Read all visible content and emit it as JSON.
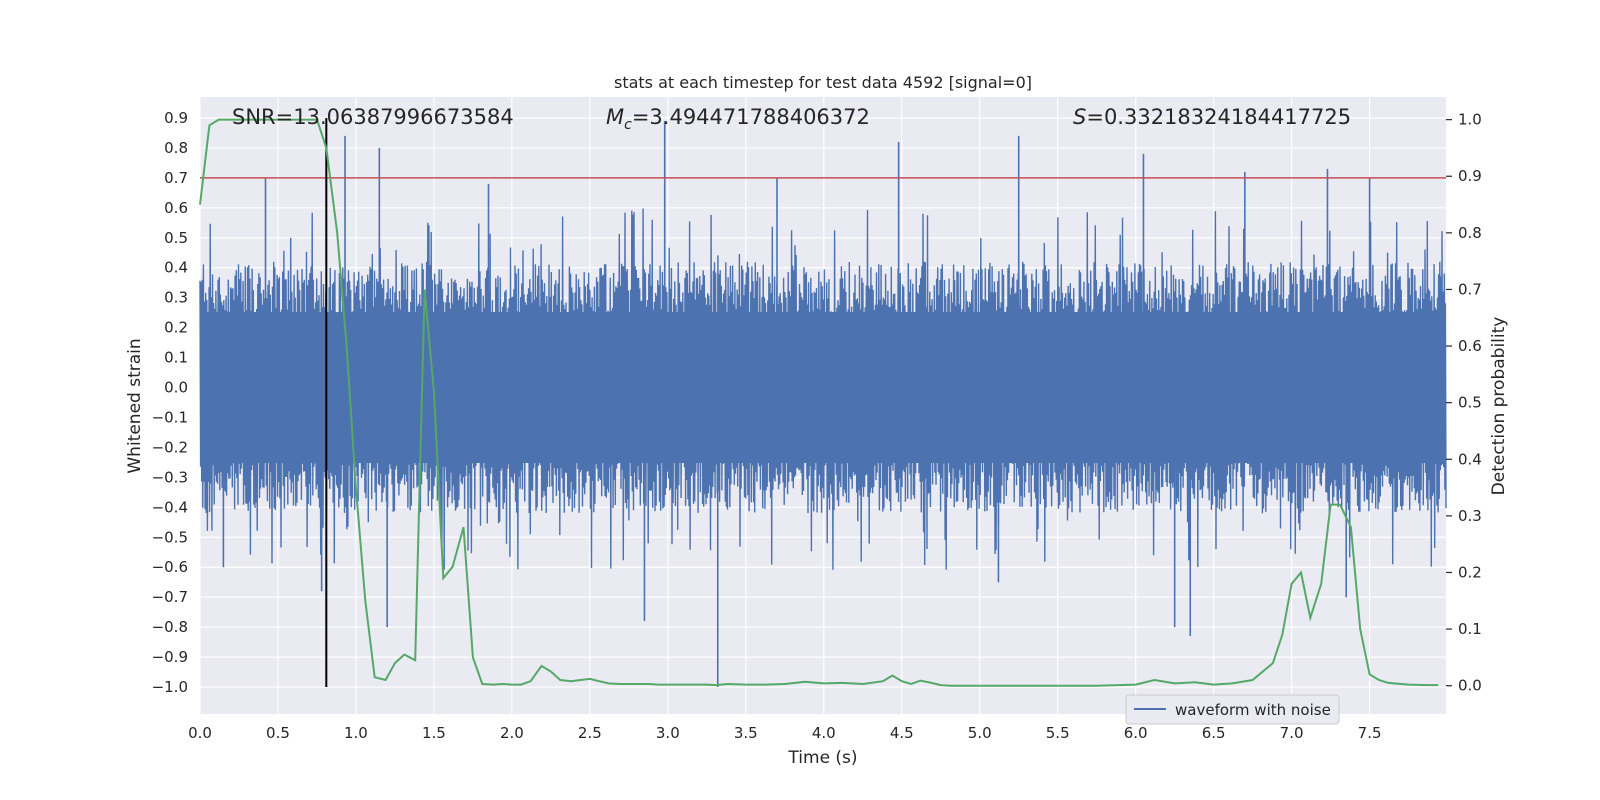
{
  "chart_data": {
    "type": "line",
    "title": "stats at each timestep for test data 4592 [signal=0]",
    "xlabel": "Time (s)",
    "ylabel_left": "Whitened strain",
    "ylabel_right": "Detection probability",
    "xlim": [
      0.0,
      7.99
    ],
    "ylim_left": [
      -1.09,
      0.97
    ],
    "ylim_right": [
      -0.05,
      1.04
    ],
    "x_ticks": [
      "0.0",
      "0.5",
      "1.0",
      "1.5",
      "2.0",
      "2.5",
      "3.0",
      "3.5",
      "4.0",
      "4.5",
      "5.0",
      "5.5",
      "6.0",
      "6.5",
      "7.0",
      "7.5"
    ],
    "y_ticks_left": [
      "0.9",
      "0.8",
      "0.7",
      "0.6",
      "0.5",
      "0.4",
      "0.3",
      "0.2",
      "0.1",
      "0.0",
      "−0.1",
      "−0.2",
      "−0.3",
      "−0.4",
      "−0.5",
      "−0.6",
      "−0.7",
      "−0.8",
      "−0.9",
      "−1.0"
    ],
    "y_ticks_right": [
      "1.0",
      "0.9",
      "0.8",
      "0.7",
      "0.6",
      "0.5",
      "0.4",
      "0.3",
      "0.2",
      "0.1",
      "0.0"
    ],
    "grid": true,
    "legend_position": "lower-right",
    "annotations": {
      "snr": "SNR=13.06387996673584",
      "mc_symbol": "M",
      "mc_sub": "c",
      "mc_value": "=3.494471788406372",
      "s_symbol": "S",
      "s_value": "=0.33218324184417725"
    },
    "threshold_line": {
      "y": 0.7,
      "color": "#c44e52"
    },
    "vertical_marker": {
      "x": 0.81,
      "y_from": -1.0,
      "y_to": 0.9,
      "color": "#000000"
    },
    "series": [
      {
        "name": "waveform with noise",
        "axis": "left",
        "color": "#4c72b0",
        "envelope": {
          "typical_abs": 0.42,
          "peak_abs": 0.9
        },
        "spikes_upper": [
          [
            0.93,
            0.84
          ],
          [
            1.15,
            0.8
          ],
          [
            2.98,
            0.89
          ],
          [
            4.48,
            0.82
          ],
          [
            5.25,
            0.84
          ],
          [
            6.05,
            0.78
          ],
          [
            7.23,
            0.73
          ],
          [
            0.42,
            0.7
          ],
          [
            1.85,
            0.68
          ],
          [
            3.7,
            0.7
          ],
          [
            6.7,
            0.72
          ],
          [
            7.5,
            0.7
          ]
        ],
        "spikes_lower": [
          [
            0.78,
            -0.68
          ],
          [
            1.2,
            -0.8
          ],
          [
            3.32,
            -1.0
          ],
          [
            6.25,
            -0.8
          ],
          [
            6.35,
            -0.83
          ],
          [
            2.85,
            -0.78
          ],
          [
            0.15,
            -0.6
          ],
          [
            5.12,
            -0.65
          ],
          [
            7.35,
            -0.7
          ]
        ]
      },
      {
        "name": "",
        "axis": "right",
        "color": "#55a868",
        "x": [
          0.0,
          0.06,
          0.12,
          0.19,
          0.25,
          0.31,
          0.38,
          0.44,
          0.5,
          0.56,
          0.62,
          0.69,
          0.75,
          0.81,
          0.88,
          0.94,
          1.0,
          1.06,
          1.12,
          1.19,
          1.25,
          1.31,
          1.38,
          1.44,
          1.5,
          1.56,
          1.62,
          1.69,
          1.75,
          1.81,
          1.88,
          1.94,
          2.0,
          2.06,
          2.12,
          2.19,
          2.25,
          2.31,
          2.38,
          2.44,
          2.5,
          2.56,
          2.62,
          2.69,
          2.75,
          2.81,
          2.88,
          2.94,
          3.0,
          3.06,
          3.12,
          3.19,
          3.25,
          3.31,
          3.38,
          3.5,
          3.62,
          3.75,
          3.88,
          4.0,
          4.12,
          4.25,
          4.38,
          4.44,
          4.5,
          4.56,
          4.62,
          4.69,
          4.75,
          4.81,
          4.88,
          5.0,
          5.25,
          5.5,
          5.75,
          6.0,
          6.12,
          6.25,
          6.38,
          6.5,
          6.62,
          6.75,
          6.88,
          6.94,
          7.0,
          7.06,
          7.12,
          7.19,
          7.25,
          7.31,
          7.38,
          7.44,
          7.5,
          7.56,
          7.62,
          7.75,
          7.88,
          7.94
        ],
        "values": [
          0.85,
          0.99,
          1.0,
          1.0,
          1.0,
          1.0,
          1.0,
          1.0,
          1.0,
          1.0,
          1.0,
          1.0,
          1.0,
          0.95,
          0.8,
          0.6,
          0.35,
          0.15,
          0.015,
          0.01,
          0.04,
          0.055,
          0.045,
          0.7,
          0.52,
          0.19,
          0.21,
          0.28,
          0.05,
          0.003,
          0.002,
          0.003,
          0.002,
          0.002,
          0.008,
          0.035,
          0.025,
          0.01,
          0.008,
          0.01,
          0.012,
          0.008,
          0.004,
          0.003,
          0.003,
          0.003,
          0.003,
          0.002,
          0.002,
          0.002,
          0.002,
          0.002,
          0.002,
          0.001,
          0.003,
          0.002,
          0.002,
          0.003,
          0.007,
          0.004,
          0.005,
          0.003,
          0.008,
          0.018,
          0.008,
          0.003,
          0.009,
          0.005,
          0.001,
          0.0,
          0.0,
          0.0,
          0.0,
          0.0,
          0.0,
          0.002,
          0.01,
          0.004,
          0.006,
          0.002,
          0.004,
          0.01,
          0.04,
          0.09,
          0.18,
          0.2,
          0.12,
          0.18,
          0.32,
          0.32,
          0.28,
          0.1,
          0.02,
          0.01,
          0.005,
          0.002,
          0.001,
          0.001
        ]
      }
    ]
  }
}
